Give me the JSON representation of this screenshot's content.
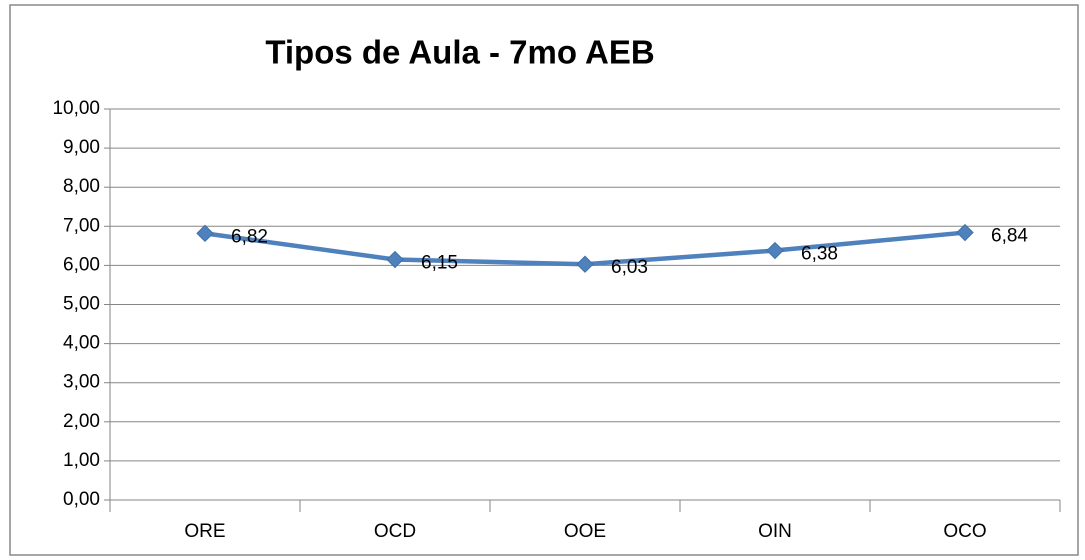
{
  "chart_data": {
    "type": "line",
    "title": "Tipos de Aula - 7mo AEB",
    "categories": [
      "ORE",
      "OCD",
      "OOE",
      "OIN",
      "OCO"
    ],
    "values": [
      6.82,
      6.15,
      6.03,
      6.38,
      6.84
    ],
    "value_labels": [
      "6,82",
      "6,15",
      "6,03",
      "6,38",
      "6,84"
    ],
    "color": "#4f81bd",
    "ylim": [
      0,
      10
    ],
    "yticks": [
      {
        "value": 0,
        "label": "0,00"
      },
      {
        "value": 1,
        "label": "1,00"
      },
      {
        "value": 2,
        "label": "2,00"
      },
      {
        "value": 3,
        "label": "3,00"
      },
      {
        "value": 4,
        "label": "4,00"
      },
      {
        "value": 5,
        "label": "5,00"
      },
      {
        "value": 6,
        "label": "6,00"
      },
      {
        "value": 7,
        "label": "7,00"
      },
      {
        "value": 8,
        "label": "8,00"
      },
      {
        "value": 9,
        "label": "9,00"
      },
      {
        "value": 10,
        "label": "10,00"
      }
    ],
    "grid": true
  }
}
